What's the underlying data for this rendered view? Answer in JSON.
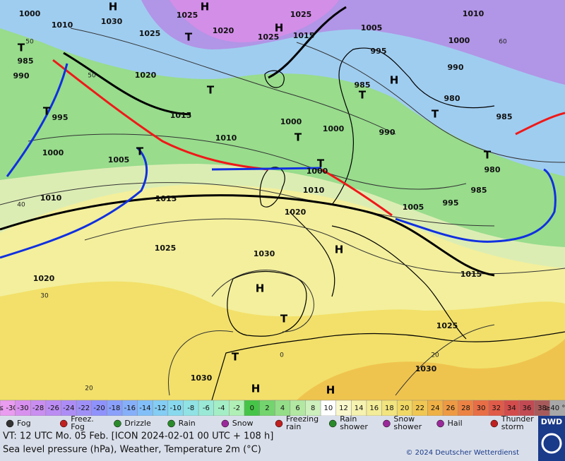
{
  "map": {
    "pressure_labels": [
      "1000",
      "1030",
      "1020",
      "1025",
      "1025",
      "1025",
      "1025",
      "1015",
      "1005",
      "1010",
      "1000",
      "1010",
      "985",
      "990",
      "995",
      "1000",
      "1020",
      "1015",
      "1010",
      "1005",
      "1000",
      "1000",
      "995",
      "985",
      "990",
      "990",
      "980",
      "985",
      "980",
      "985",
      "995",
      "1005",
      "1000",
      "1010",
      "1020",
      "1015",
      "1010",
      "1025",
      "1030",
      "1020",
      "1015",
      "1025",
      "1030",
      "1030"
    ],
    "temperature_labels": [
      "50",
      "50",
      "60",
      "40",
      "30",
      "20",
      "0",
      "20"
    ],
    "centers": [
      "H",
      "H",
      "H",
      "H",
      "H",
      "H",
      "H",
      "H",
      "T",
      "T",
      "T",
      "T",
      "T",
      "T",
      "T",
      "T",
      "T",
      "T",
      "T",
      "T"
    ]
  },
  "color_scale": {
    "labels": [
      "≤ -30",
      "-30",
      "-28",
      "-26",
      "-24",
      "-22",
      "-20",
      "-18",
      "-16",
      "-14",
      "-12",
      "-10",
      "-8",
      "-6",
      "-4",
      "-2",
      "0",
      "2",
      "4",
      "6",
      "8",
      "10",
      "12",
      "14",
      "16",
      "18",
      "20",
      "22",
      "24",
      "26",
      "28",
      "30",
      "32",
      "34",
      "36",
      "38",
      "≥40 °C"
    ],
    "colors": [
      "#e99cf0",
      "#d890ee",
      "#c98ef0",
      "#bb8cf2",
      "#ad8df5",
      "#9f90f8",
      "#8f92fb",
      "#8aa0fb",
      "#86affa",
      "#82bff8",
      "#84cdf4",
      "#88d9ee",
      "#90e2e4",
      "#9ae9d6",
      "#a4eec6",
      "#b0f0b6",
      "#46c447",
      "#74d46e",
      "#94de88",
      "#b2e8a2",
      "#cdf0bc",
      "#ffffff",
      "#f9f7cc",
      "#f6f2b0",
      "#f3ec98",
      "#f2e47e",
      "#f1d966",
      "#f0c752",
      "#efb146",
      "#ee9a44",
      "#ec8344",
      "#e86e46",
      "#e05b48",
      "#d34c4c",
      "#c24a52",
      "#a85a5a",
      "#a8a8a8"
    ]
  },
  "legend": {
    "items": [
      [
        "Fog"
      ],
      [
        "Freez.",
        "Fog"
      ],
      [
        "Drizzle"
      ],
      [
        "Rain"
      ],
      [
        "Snow"
      ],
      [
        "Freezing",
        "rain"
      ],
      [
        "Rain",
        "shower"
      ],
      [
        "Snow",
        "shower"
      ],
      [
        "Hail"
      ],
      [
        "Thunder",
        "storm"
      ]
    ]
  },
  "footer": {
    "valid_time": "VT: 12 UTC Mo.  05 Feb. [ICON 2024-02-01  00 UTC + 108 h]",
    "description": "Sea level pressure (hPa), Weather, Temperature 2m (°C)",
    "copyright": "© 2024 Deutscher Wetterdienst",
    "logo": "DWD"
  }
}
